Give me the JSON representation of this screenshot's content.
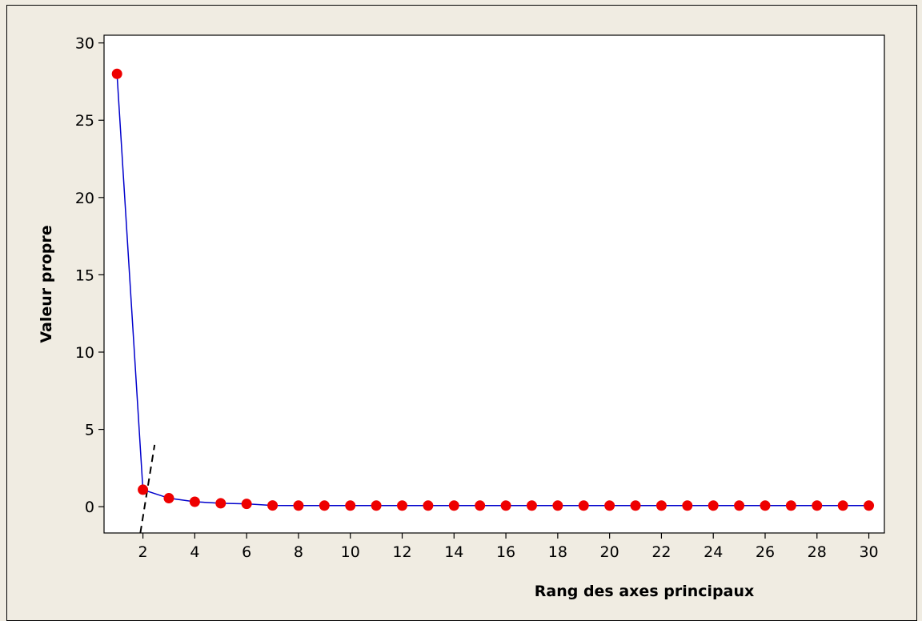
{
  "chart_data": {
    "type": "line",
    "title": "",
    "xlabel": "Rang des axes principaux",
    "ylabel": "Valeur propre",
    "xlim": [
      0.5,
      30.6
    ],
    "ylim": [
      -1.7,
      30.5
    ],
    "xticks": [
      2,
      4,
      6,
      8,
      10,
      12,
      14,
      16,
      18,
      20,
      22,
      24,
      26,
      28,
      30
    ],
    "yticks": [
      0,
      5,
      10,
      15,
      20,
      25,
      30
    ],
    "grid": false,
    "legend": "none",
    "series": [
      {
        "x": [
          1,
          2,
          3,
          4,
          5,
          6,
          7,
          8,
          9,
          10,
          11,
          12,
          13,
          14,
          15,
          16,
          17,
          18,
          19,
          20,
          21,
          22,
          23,
          24,
          25,
          26,
          27,
          28,
          29,
          30
        ],
        "y": [
          28.0,
          1.1,
          0.55,
          0.32,
          0.22,
          0.18,
          0.08,
          0.07,
          0.07,
          0.07,
          0.07,
          0.07,
          0.07,
          0.07,
          0.07,
          0.07,
          0.07,
          0.07,
          0.07,
          0.07,
          0.07,
          0.07,
          0.07,
          0.07,
          0.07,
          0.07,
          0.07,
          0.07,
          0.07,
          0.07
        ]
      }
    ],
    "annotation_line": {
      "from": [
        1.9,
        -1.7
      ],
      "to": [
        2.45,
        4.0
      ]
    },
    "colors": {
      "line": "#0000cc",
      "marker": "#ee0000",
      "annotation": "#000000",
      "plot_bg": "#ffffff",
      "page_bg": "#f0ece2"
    }
  }
}
